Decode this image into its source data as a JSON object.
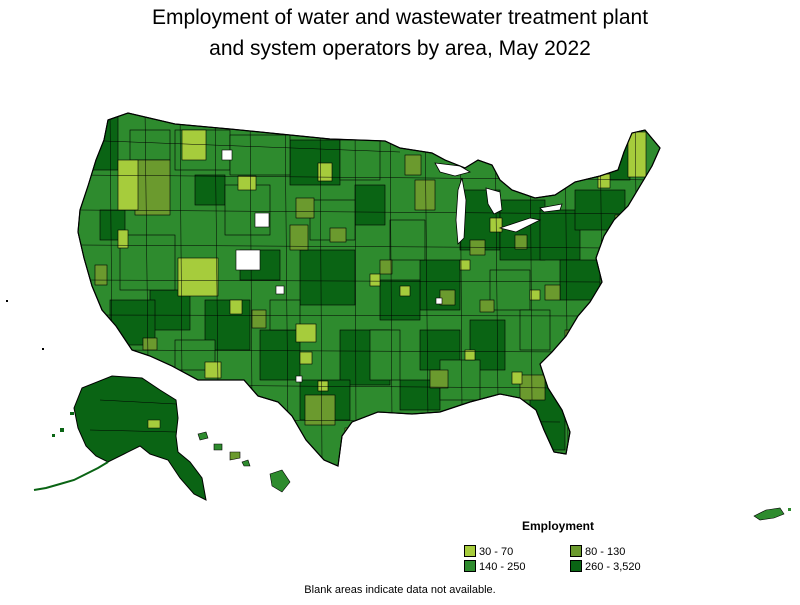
{
  "title": {
    "line1": "Employment of water and wastewater treatment plant",
    "line2": "and system operators by area, May 2022"
  },
  "legend": {
    "title": "Employment",
    "items": [
      {
        "label": "30 - 70",
        "color": "#a6cc3c"
      },
      {
        "label": "80 - 130",
        "color": "#6b9a2e"
      },
      {
        "label": "140 - 250",
        "color": "#2e8b2e"
      },
      {
        "label": "260 - 3,520",
        "color": "#0a6414"
      }
    ]
  },
  "footnote": "Blank areas indicate data not available.",
  "colors": {
    "blank": "#ffffff",
    "border": "#000000"
  }
}
